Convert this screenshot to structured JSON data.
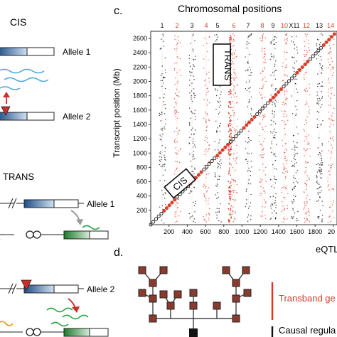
{
  "left_panel": {
    "cis_title": "CIS",
    "cis_allele1": "Allele 1",
    "cis_allele2": "Allele 2",
    "trans_title": "TRANS",
    "trans_allele1": "Allele 1",
    "trans_allele2": "Allele 2"
  },
  "panel_c": {
    "label": "c.",
    "top_title": "Chromosomal positions",
    "ylabel": "Transcript position (Mb)",
    "xlabel": "eQTL",
    "cis_label": "CIS",
    "trans_label": "TRANS",
    "colors": {
      "black": "#111111",
      "red": "#d8412f"
    }
  },
  "panel_d": {
    "label": "d.",
    "transband_label": "Transband ge",
    "causal_label": "Causal regula",
    "colors": {
      "box_fill": "#8b3a2e",
      "line_red": "#d23b2a"
    }
  },
  "chart_data": {
    "type": "scatter",
    "chromosome_labels": [
      "1",
      "2",
      "3",
      "4",
      "5",
      "6",
      "7",
      "8",
      "9",
      "10",
      "X11",
      "12",
      "13",
      "14"
    ],
    "chromosome_label_colors": [
      "#111111",
      "#d8412f",
      "#111111",
      "#d8412f",
      "#111111",
      "#d8412f",
      "#111111",
      "#d8412f",
      "#111111",
      "#d8412f",
      "#111111",
      "#d8412f",
      "#111111",
      "#d8412f"
    ],
    "yticks": [
      200,
      400,
      600,
      800,
      1000,
      1200,
      1400,
      1600,
      1800,
      2000,
      2200,
      2400,
      2600
    ],
    "xticks": [
      200,
      400,
      600,
      800,
      1000,
      1200,
      1400,
      1600,
      1800,
      "20"
    ],
    "xlim": [
      0,
      2040
    ],
    "ylim": [
      0,
      2700
    ],
    "ylabel": "Transcript position (Mb)",
    "xlabel": "eQTL",
    "cis_diagonal": {
      "x_start": 0,
      "y_start": 0,
      "x_end": 2040,
      "y_end": 2700
    },
    "trans_hotspot_x": 860
  }
}
